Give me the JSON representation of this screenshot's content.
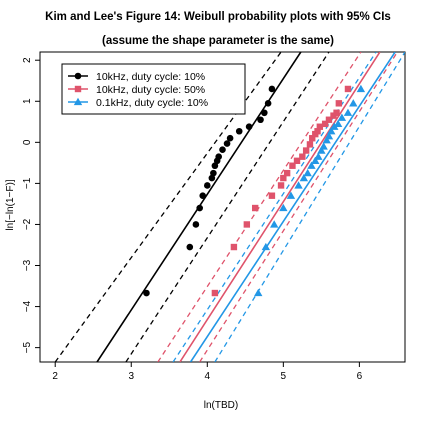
{
  "chart_data": {
    "type": "scatter",
    "title": "Kim and Lee's Figure 14: Weibull probability plots with 95% CIs",
    "subtitle": "(assume the shape parameter is the same)",
    "xlabel": "ln(TBD)",
    "ylabel": "ln[−ln(1−F)]",
    "xlim": [
      1.8,
      6.6
    ],
    "ylim": [
      -5.35,
      2.2
    ],
    "xticks": [
      2,
      3,
      4,
      5,
      6
    ],
    "yticks": [
      -5,
      -4,
      -3,
      -2,
      -1,
      0,
      1,
      2
    ],
    "xtick_labels": [
      "2",
      "3",
      "4",
      "5",
      "6"
    ],
    "ytick_labels": [
      "−5",
      "−4",
      "−3",
      "−2",
      "−1",
      "0",
      "1",
      "2"
    ],
    "grid": false,
    "legend_position": "top-left",
    "series": [
      {
        "name": "10kHz, duty cycle: 10%",
        "color": "#000000",
        "marker": "circle",
        "x": [
          3.2,
          3.77,
          3.85,
          3.9,
          3.94,
          4.0,
          4.06,
          4.08,
          4.1,
          4.13,
          4.15,
          4.2,
          4.26,
          4.3,
          4.42,
          4.55,
          4.7,
          4.75,
          4.8,
          4.85
        ],
        "y": [
          -3.67,
          -2.55,
          -2.0,
          -1.6,
          -1.3,
          -1.05,
          -0.87,
          -0.75,
          -0.57,
          -0.45,
          -0.35,
          -0.18,
          -0.03,
          0.1,
          0.27,
          0.38,
          0.55,
          0.72,
          0.95,
          1.3
        ],
        "fit_line": {
          "x": [
            2.55,
            5.23
          ],
          "y": [
            -5.35,
            2.2
          ]
        },
        "ci_lower": {
          "x": [
            2.93,
            5.6
          ],
          "y": [
            -5.35,
            2.2
          ]
        },
        "ci_upper": {
          "x": [
            2.0,
            4.97
          ],
          "y": [
            -5.35,
            2.2
          ]
        }
      },
      {
        "name": "10kHz, duty cycle: 50%",
        "color": "#DF536B",
        "marker": "square",
        "x": [
          4.1,
          4.35,
          4.52,
          4.63,
          4.85,
          4.97,
          5.0,
          5.05,
          5.12,
          5.18,
          5.25,
          5.3,
          5.35,
          5.38,
          5.42,
          5.45,
          5.48,
          5.55,
          5.6,
          5.66,
          5.7,
          5.73,
          5.85
        ],
        "y": [
          -3.67,
          -2.55,
          -2.0,
          -1.6,
          -1.3,
          -1.05,
          -0.87,
          -0.75,
          -0.57,
          -0.45,
          -0.35,
          -0.2,
          -0.05,
          0.1,
          0.2,
          0.27,
          0.38,
          0.45,
          0.55,
          0.65,
          0.72,
          0.95,
          1.3
        ],
        "fit_line": {
          "x": [
            3.64,
            6.27
          ],
          "y": [
            -5.35,
            2.2
          ]
        },
        "ci_lower": {
          "x": [
            3.9,
            6.5
          ],
          "y": [
            -5.35,
            2.2
          ]
        },
        "ci_upper": {
          "x": [
            3.35,
            6.02
          ],
          "y": [
            -5.35,
            2.2
          ]
        }
      },
      {
        "name": "0.1kHz, duty cycle: 10%",
        "color": "#2297E6",
        "marker": "triangle",
        "x": [
          4.67,
          4.77,
          4.88,
          5.0,
          5.1,
          5.2,
          5.27,
          5.32,
          5.37,
          5.42,
          5.46,
          5.5,
          5.53,
          5.57,
          5.6,
          5.63,
          5.67,
          5.72,
          5.77,
          5.85,
          5.92,
          6.02
        ],
        "y": [
          -3.67,
          -2.55,
          -2.0,
          -1.6,
          -1.3,
          -1.05,
          -0.87,
          -0.75,
          -0.57,
          -0.45,
          -0.35,
          -0.2,
          -0.1,
          0.05,
          0.15,
          0.27,
          0.38,
          0.45,
          0.6,
          0.72,
          0.95,
          1.3
        ],
        "fit_line": {
          "x": [
            3.78,
            6.47
          ],
          "y": [
            -5.35,
            2.2
          ]
        },
        "ci_lower": {
          "x": [
            4.1,
            6.6
          ],
          "y": [
            -5.35,
            2.2
          ]
        },
        "ci_upper": {
          "x": [
            3.55,
            6.22
          ],
          "y": [
            -5.35,
            2.2
          ]
        }
      }
    ]
  }
}
